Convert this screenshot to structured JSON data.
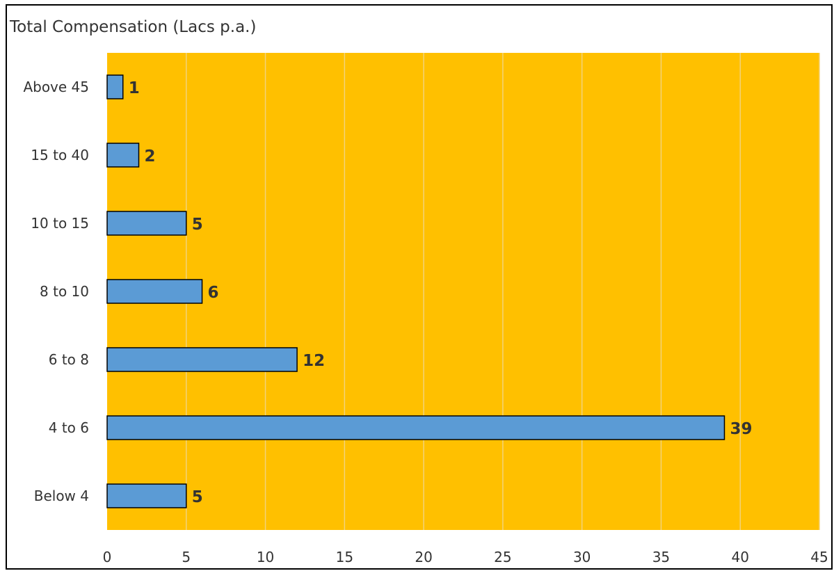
{
  "chart_data": {
    "type": "bar",
    "orientation": "horizontal",
    "title": "Total Compensation (Lacs p.a.)",
    "xlabel": "",
    "ylabel": "",
    "categories": [
      "Below 4",
      "4 to 6",
      "6 to 8",
      "8 to 10",
      "10 to 15",
      "15 to 40",
      "Above 45"
    ],
    "values": [
      5,
      39,
      12,
      6,
      5,
      2,
      1
    ],
    "xlim": [
      0,
      45
    ],
    "x_ticks": [
      0,
      5,
      10,
      15,
      20,
      25,
      30,
      35,
      40,
      45
    ],
    "grid": true,
    "legend": "none",
    "colors": {
      "plot_background": "#FFC000",
      "bar_fill": "#5B9BD5",
      "bar_outline": "#000000",
      "gridline": "#F2D27A",
      "text": "#333333"
    }
  }
}
